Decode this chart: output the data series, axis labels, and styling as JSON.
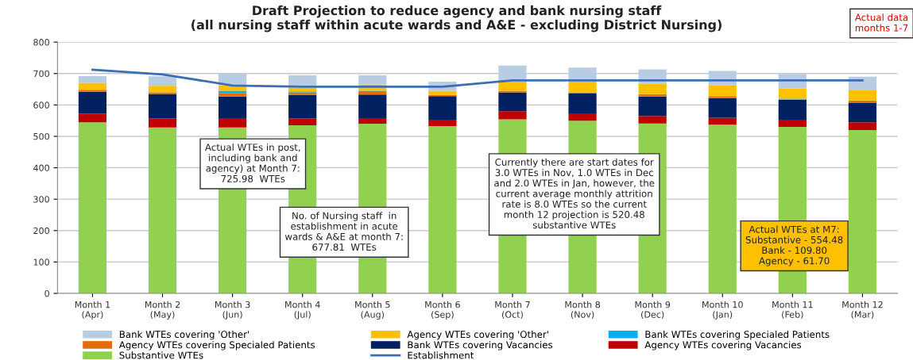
{
  "chart_data": {
    "type": "bar",
    "stacked": true,
    "title": "Draft Projection to reduce agency and bank nursing staff\n(all nursing staff within acute wards and A&E - excluding District Nursing)",
    "categories": [
      "Month 1\n(Apr)",
      "Month 2\n(May)",
      "Month 3\n(Jun)",
      "Month 4\n(Jul)",
      "Month 5\n(Aug)",
      "Month 6\n(Sep)",
      "Month 7\n(Oct)",
      "Month 8\n(Nov)",
      "Month 9\n(Dec)",
      "Month 10\n(Jan)",
      "Month 11\n(Feb)",
      "Month 12\n(Mar)"
    ],
    "series": [
      {
        "name": "Substantive WTEs",
        "color": "#92d050",
        "values": [
          545,
          528,
          528,
          535,
          540,
          533,
          554,
          550,
          541,
          537,
          530,
          520
        ]
      },
      {
        "name": "Agency WTEs covering Vacancies",
        "color": "#c00000",
        "values": [
          27,
          29,
          30,
          22,
          18,
          20,
          26,
          23,
          24,
          22,
          23,
          25
        ]
      },
      {
        "name": "Bank WTEs covering Vacancies",
        "color": "#002060",
        "values": [
          70,
          78,
          69,
          75,
          75,
          75,
          60,
          63,
          62,
          63,
          63,
          61
        ]
      },
      {
        "name": "Agency WTEs covering Specialed Patients",
        "color": "#e46c0a",
        "values": [
          4,
          5,
          10,
          8,
          8,
          4,
          5,
          4,
          4,
          4,
          2,
          5
        ]
      },
      {
        "name": "Bank WTEs covering Specialed Patients",
        "color": "#00b0f0",
        "values": [
          2,
          null,
          8,
          3,
          4,
          null,
          null,
          null,
          3,
          2,
          2,
          3
        ]
      },
      {
        "name": "Agency WTEs covering 'Other'",
        "color": "#ffc000",
        "values": [
          22,
          21,
          17,
          13,
          20,
          13,
          29,
          34,
          34,
          35,
          32,
          32
        ]
      },
      {
        "name": "Bank WTEs covering 'Other'",
        "color": "#b8cce4",
        "values": [
          22,
          30,
          38,
          38,
          29,
          29,
          51,
          45,
          45,
          45,
          47,
          44
        ]
      },
      {
        "name": "Establishment",
        "type": "line",
        "color": "#3c6eb4",
        "values": [
          712,
          697,
          662,
          658,
          658,
          658,
          678,
          678,
          678,
          678,
          678,
          678
        ]
      }
    ],
    "ylim": [
      0,
      800
    ],
    "yticks": [
      0,
      100,
      200,
      300,
      400,
      500,
      600,
      700,
      800
    ],
    "grid": "y",
    "legend": "bottom",
    "annotations": [
      "Actual WTEs in post,\nincluding bank and\nagency) at Month 7:\n725.98  WTEs",
      "No. of Nursing staff  in\nestablishment in acute\nwards & A&E at month 7:\n677.81  WTEs",
      "Currently there are start dates for\n3.0 WTEs in Nov, 1.0 WTEs in Dec\nand 2.0 WTEs in Jan, however, the\ncurrent average monthly attrition\nrate is 8.0 WTEs so the current\nmonth 12 projection is 520.48\nsubstantive WTEs",
      "Actual WTEs at M7:\nSubstantive - 554.48\nBank - 109.80\nAgency - 61.70",
      "Actual data\nmonths 1-7"
    ]
  }
}
